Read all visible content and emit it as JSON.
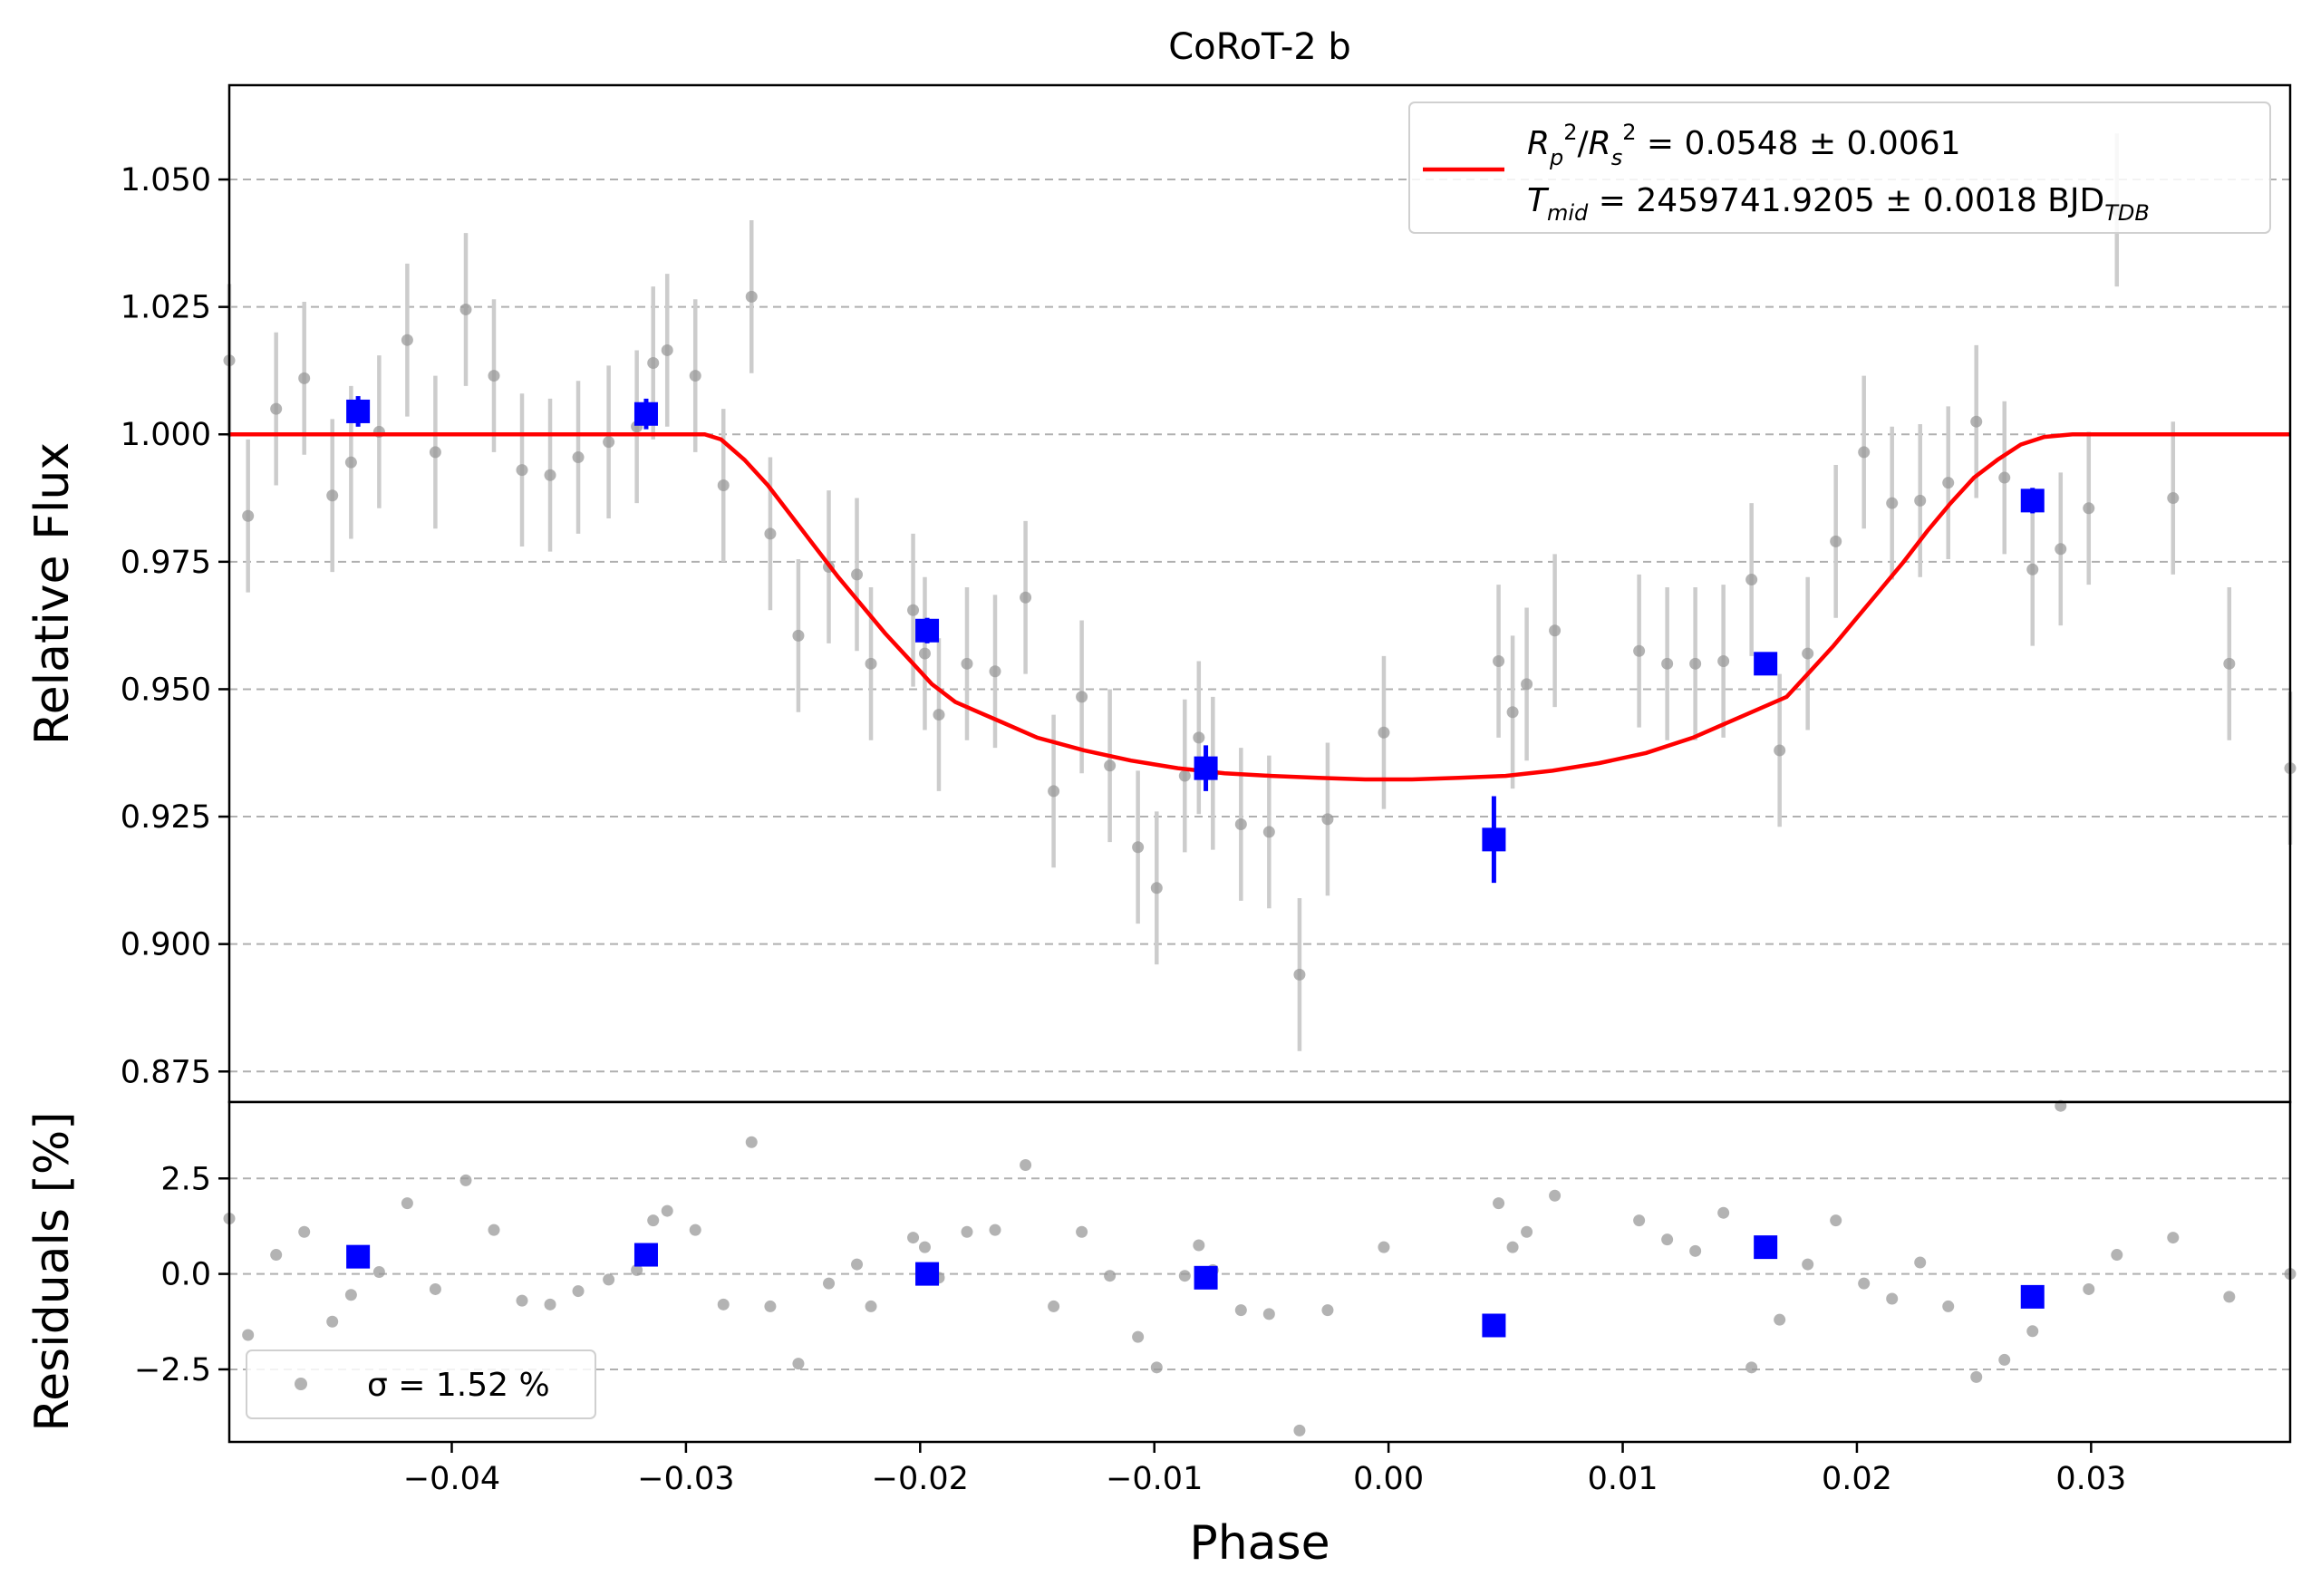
{
  "chart_data": [
    {
      "type": "scatter",
      "panel": "top",
      "title": "CoRoT-2 b",
      "xlabel": "",
      "ylabel": "Relative Flux",
      "xlim": [
        -0.0495,
        0.0385
      ],
      "ylim": [
        0.869,
        1.0685
      ],
      "yticks": [
        "0.875",
        "0.900",
        "0.925",
        "0.950",
        "0.975",
        "1.000",
        "1.025",
        "1.050"
      ],
      "grid": "horizontal dashed",
      "legend": {
        "placement": "top-right",
        "line1": "R_p^2/R_s^2 = 0.0548 ± 0.0061",
        "line2": "T_mid = 2459741.9205 ± 0.0018 BJD_TDB"
      },
      "colors": {
        "raw": "#999999",
        "errorbar": "#cccccc",
        "binned": "#0000ff",
        "model": "#ff0000"
      },
      "series": [
        {
          "type": "scatter",
          "x": [
            -0.0495,
            -0.0487,
            -0.0475,
            -0.0463,
            -0.0451,
            -0.0443,
            -0.0431,
            -0.0419,
            -0.0407,
            -0.0394,
            -0.0382,
            -0.037,
            -0.0358,
            -0.0346,
            -0.0333,
            -0.0321,
            -0.0314,
            -0.0308,
            -0.0296,
            -0.0284,
            -0.0272,
            -0.0264,
            -0.0252,
            -0.0239,
            -0.0227,
            -0.0221,
            -0.0203,
            -0.0198,
            -0.0192,
            -0.018,
            -0.0168,
            -0.0155,
            -0.0143,
            -0.0131,
            -0.0119,
            -0.0107,
            -0.0099,
            -0.0087,
            -0.0081,
            -0.0075,
            -0.0063,
            -0.0051,
            -0.0038,
            -0.0026,
            -0.0002,
            0.0047,
            0.0053,
            0.0059,
            0.0071,
            0.0107,
            0.0119,
            0.0131,
            0.0143,
            0.0155,
            0.0167,
            0.0179,
            0.0191,
            0.0203,
            0.0215,
            0.0227,
            0.0239,
            0.0251,
            0.0263,
            0.0275,
            0.0287,
            0.0299,
            0.0311,
            0.0335,
            0.0359,
            0.0385
          ],
          "y": [
            1.0145,
            0.984,
            1.005,
            1.011,
            0.988,
            0.9945,
            1.0005,
            1.0185,
            0.9965,
            1.0245,
            1.0115,
            0.993,
            0.992,
            0.9955,
            0.9985,
            1.0015,
            1.014,
            1.0165,
            1.0115,
            0.99,
            1.027,
            0.9805,
            0.9605,
            0.974,
            0.9725,
            0.955,
            0.9655,
            0.957,
            0.945,
            0.955,
            0.9535,
            0.968,
            0.93,
            0.9485,
            0.935,
            0.919,
            0.911,
            0.933,
            0.9405,
            0.9335,
            0.9235,
            0.922,
            0.894,
            0.9245,
            0.9415,
            0.9555,
            0.9455,
            0.951,
            0.9615,
            0.9575,
            0.955,
            0.955,
            0.9555,
            0.9715,
            0.938,
            0.957,
            0.979,
            0.9965,
            0.9865,
            0.987,
            0.9905,
            1.0025,
            0.9915,
            0.9735,
            0.9775,
            0.9855,
            1.044,
            0.9875,
            0.955,
            0.9345
          ],
          "yerr": 0.015
        },
        {
          "type": "scatter",
          "name": "binned",
          "x": [
            -0.044,
            -0.0317,
            -0.0197,
            -0.0078,
            0.0045,
            0.0161,
            0.0275
          ],
          "y": [
            1.0045,
            1.004,
            0.9615,
            0.9345,
            0.9205,
            0.955,
            0.987
          ],
          "yerr": [
            0.003,
            0.003,
            0.0025,
            0.0045,
            0.0085,
            0.0015,
            0.0025
          ]
        },
        {
          "type": "line",
          "name": "model",
          "x": [
            -0.0495,
            -0.0292,
            -0.0285,
            -0.0275,
            -0.0265,
            -0.0255,
            -0.0245,
            -0.0235,
            -0.0225,
            -0.0215,
            -0.0205,
            -0.0195,
            -0.0185,
            -0.0175,
            -0.0165,
            -0.015,
            -0.013,
            -0.011,
            -0.009,
            -0.007,
            -0.005,
            -0.003,
            -0.001,
            0.001,
            0.003,
            0.005,
            0.007,
            0.009,
            0.011,
            0.013,
            0.015,
            0.017,
            0.018,
            0.019,
            0.02,
            0.021,
            0.022,
            0.023,
            0.024,
            0.025,
            0.026,
            0.027,
            0.028,
            0.0292,
            0.0385
          ],
          "y": [
            1.0,
            1.0,
            0.999,
            0.995,
            0.99,
            0.984,
            0.978,
            0.972,
            0.9665,
            0.961,
            0.956,
            0.951,
            0.9475,
            0.9455,
            0.9435,
            0.9405,
            0.938,
            0.936,
            0.9345,
            0.9335,
            0.933,
            0.9326,
            0.9323,
            0.9323,
            0.9326,
            0.933,
            0.934,
            0.9355,
            0.9375,
            0.9405,
            0.9445,
            0.9485,
            0.9535,
            0.9585,
            0.964,
            0.9695,
            0.975,
            0.981,
            0.9865,
            0.9915,
            0.995,
            0.998,
            0.9995,
            1.0,
            1.0
          ]
        }
      ]
    },
    {
      "type": "scatter",
      "panel": "bottom",
      "xlabel": "Phase",
      "ylabel": "Residuals [%]",
      "xlim": [
        -0.0495,
        0.0385
      ],
      "ylim": [
        -4.4,
        4.5
      ],
      "xticks": [
        "−0.04",
        "−0.03",
        "−0.02",
        "−0.01",
        "0.00",
        "0.01",
        "0.02",
        "0.03"
      ],
      "yticks": [
        "−2.5",
        "0.0",
        "2.5"
      ],
      "grid": "horizontal dashed",
      "legend": {
        "placement": "bottom-left",
        "label": "σ = 1.52 %"
      },
      "series": [
        {
          "type": "scatter",
          "x": [
            -0.0495,
            -0.0487,
            -0.0475,
            -0.0463,
            -0.0451,
            -0.0443,
            -0.0431,
            -0.0419,
            -0.0407,
            -0.0394,
            -0.0382,
            -0.037,
            -0.0358,
            -0.0346,
            -0.0333,
            -0.0321,
            -0.0314,
            -0.0308,
            -0.0296,
            -0.0284,
            -0.0272,
            -0.0264,
            -0.0252,
            -0.0239,
            -0.0227,
            -0.0221,
            -0.0203,
            -0.0198,
            -0.0192,
            -0.018,
            -0.0168,
            -0.0155,
            -0.0143,
            -0.0131,
            -0.0119,
            -0.0107,
            -0.0099,
            -0.0087,
            -0.0081,
            -0.0075,
            -0.0063,
            -0.0051,
            -0.0038,
            -0.0026,
            -0.0002,
            0.0047,
            0.0053,
            0.0059,
            0.0071,
            0.0107,
            0.0119,
            0.0131,
            0.0143,
            0.0155,
            0.0167,
            0.0179,
            0.0191,
            0.0203,
            0.0215,
            0.0227,
            0.0239,
            0.0251,
            0.0263,
            0.0275,
            0.0287,
            0.0299,
            0.0311,
            0.0335,
            0.0359,
            0.0385
          ],
          "y": [
            1.45,
            -1.6,
            0.5,
            1.1,
            -1.25,
            -0.55,
            0.05,
            1.85,
            -0.4,
            2.45,
            1.15,
            -0.7,
            -0.8,
            -0.45,
            -0.15,
            0.1,
            1.4,
            1.65,
            1.15,
            -0.8,
            3.45,
            -0.85,
            -2.35,
            -0.25,
            0.25,
            -0.85,
            0.95,
            0.7,
            -0.1,
            1.1,
            1.15,
            2.85,
            -0.85,
            1.1,
            -0.05,
            -1.65,
            -2.45,
            -0.05,
            0.75,
            0.1,
            -0.95,
            -1.05,
            -4.1,
            -0.95,
            0.7,
            1.85,
            0.7,
            1.1,
            2.05,
            1.4,
            0.9,
            0.6,
            1.6,
            -2.45,
            -1.2,
            0.25,
            1.4,
            -0.25,
            -0.65,
            0.3,
            -0.85,
            -2.7,
            -2.25,
            -1.5,
            4.4,
            -0.4,
            0.5,
            0.95,
            -0.6,
            0.0
          ],
          "name": "σ = 1.52 %"
        },
        {
          "type": "scatter",
          "name": "binned",
          "x": [
            -0.044,
            -0.0317,
            -0.0197,
            -0.0078,
            0.0045,
            0.0161,
            0.0275
          ],
          "y": [
            0.45,
            0.5,
            0.0,
            -0.1,
            -1.35,
            0.7,
            -0.6
          ]
        }
      ]
    }
  ]
}
